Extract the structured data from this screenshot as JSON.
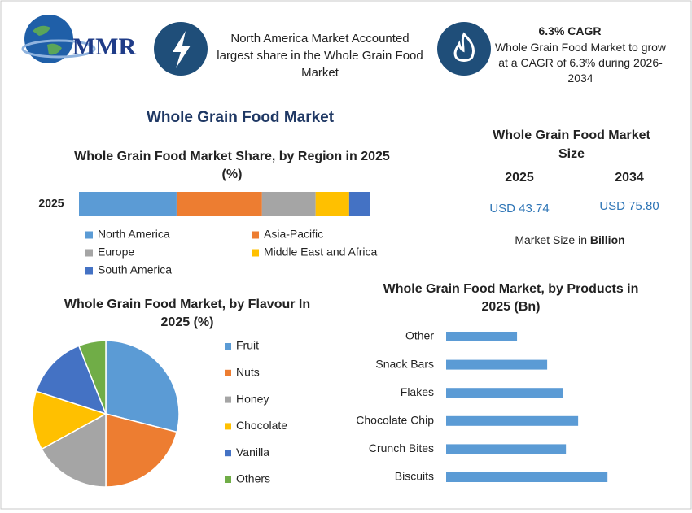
{
  "header": {
    "logo": "MMR",
    "info_left": "North America Market Accounted largest share in the Whole Grain Food Market",
    "info_right_title": "6.3% CAGR",
    "info_right": "Whole Grain Food Market to grow at a CAGR of 6.3% during 2026-2034"
  },
  "main_title": "Whole Grain Food Market",
  "size_panel": {
    "title": "Whole Grain Food Market Size",
    "years": [
      "2025",
      "2034"
    ],
    "values": [
      "USD 43.74",
      "USD 75.80"
    ],
    "note": "Market Size in",
    "unit": "Billion"
  },
  "chart_data": [
    {
      "type": "stacked-bar",
      "title": "Whole Grain Food Market Share, by Region in 2025 (%)",
      "categories": [
        "2025"
      ],
      "series": [
        {
          "name": "North America",
          "color": "#5b9bd5",
          "values": [
            33.5
          ]
        },
        {
          "name": "Asia-Pacific",
          "color": "#ed7d31",
          "values": [
            29.3
          ]
        },
        {
          "name": "Europe",
          "color": "#a5a5a5",
          "values": [
            18.4
          ]
        },
        {
          "name": "Middle East and Africa",
          "color": "#ffc000",
          "values": [
            11.5
          ]
        },
        {
          "name": "South America",
          "color": "#4472c4",
          "values": [
            7.3
          ]
        }
      ]
    },
    {
      "type": "pie",
      "title": "Whole Grain Food Market, by Flavour In 2025 (%)",
      "categories": [
        "Fruit",
        "Nuts",
        "Honey",
        "Chocolate",
        "Vanilla",
        "Others"
      ],
      "values": [
        29,
        21,
        17,
        13,
        14,
        6
      ],
      "colors": [
        "#5b9bd5",
        "#ed7d31",
        "#a5a5a5",
        "#ffc000",
        "#4472c4",
        "#70ad47"
      ]
    },
    {
      "type": "hbar",
      "title": "Whole Grain Food Market, by Products in 2025 (Bn)",
      "categories": [
        "Other",
        "Snack Bars",
        "Flakes",
        "Chocolate Chip",
        "Crunch Bites",
        "Biscuits"
      ],
      "values": [
        4.42,
        6.3,
        7.26,
        8.23,
        7.47,
        10.06
      ],
      "color": "#5b9bd5"
    }
  ]
}
